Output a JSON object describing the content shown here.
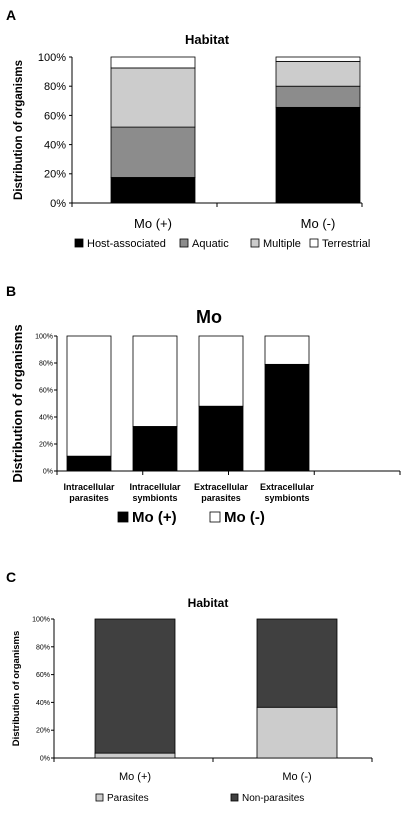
{
  "panels": [
    {
      "letter": "A",
      "chart_data": {
        "type": "bar",
        "stacked": true,
        "title": "Habitat",
        "ylabel": "Distribution of organisms",
        "ylim": [
          0,
          100
        ],
        "yticks": [
          "0%",
          "20%",
          "40%",
          "60%",
          "80%",
          "100%"
        ],
        "categories": [
          "Mo (+)",
          "Mo (-)"
        ],
        "series": [
          {
            "name": "Host-associated",
            "color": "#000000",
            "values": [
              17.5,
              65.5
            ]
          },
          {
            "name": "Aquatic",
            "color": "#8c8c8c",
            "values": [
              34.5,
              14.5
            ]
          },
          {
            "name": "Multiple",
            "color": "#cccccc",
            "values": [
              40.5,
              17
            ]
          },
          {
            "name": "Terrestrial",
            "color": "#ffffff",
            "values": [
              7.5,
              3
            ]
          }
        ],
        "legend": "bottom",
        "grid": false
      }
    },
    {
      "letter": "B",
      "chart_data": {
        "type": "bar",
        "stacked": true,
        "title": "Mo",
        "ylabel": "Distribution of organisms",
        "ylim": [
          0,
          100
        ],
        "yticks": [
          "0%",
          "20%",
          "40%",
          "60%",
          "80%",
          "100%"
        ],
        "categories": [
          [
            "Intracellular",
            "parasites"
          ],
          [
            "Intracellular",
            "symbionts"
          ],
          [
            "Extracellular",
            "parasites"
          ],
          [
            "Extracellular",
            "symbionts"
          ]
        ],
        "series": [
          {
            "name": "Mo (+)",
            "color": "#000000",
            "values": [
              11,
              33,
              48,
              79
            ]
          },
          {
            "name": "Mo (-)",
            "color": "#ffffff",
            "values": [
              89,
              67,
              52,
              21
            ]
          }
        ],
        "legend": "bottom",
        "grid": false
      }
    },
    {
      "letter": "C",
      "chart_data": {
        "type": "bar",
        "stacked": true,
        "title": "Habitat",
        "ylabel": "Distribution of organisms",
        "ylim": [
          0,
          100
        ],
        "yticks": [
          "0%",
          "20%",
          "40%",
          "60%",
          "80%",
          "100%"
        ],
        "categories": [
          "Mo (+)",
          "Mo (-)"
        ],
        "series": [
          {
            "name": "Parasites",
            "color": "#cccccc",
            "values": [
              3.5,
              36.5
            ]
          },
          {
            "name": "Non-parasites",
            "color": "#404040",
            "values": [
              96.5,
              63.5
            ]
          }
        ],
        "legend": "bottom",
        "grid": false
      }
    }
  ]
}
